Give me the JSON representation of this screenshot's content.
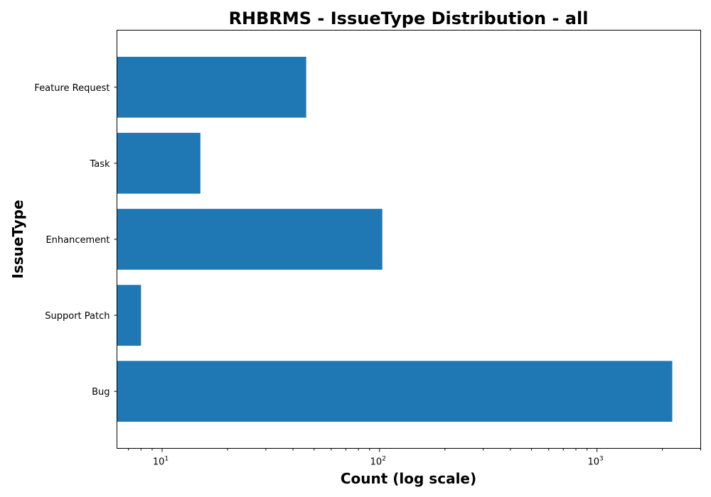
{
  "chart_data": {
    "type": "bar",
    "orientation": "horizontal",
    "title": "RHBRMS - IssueType Distribution - all",
    "xlabel": "Count (log scale)",
    "ylabel": "IssueType",
    "x_scale": "log",
    "xlim": [
      6.2,
      3000
    ],
    "x_ticks": [
      {
        "value": 10,
        "base": "10",
        "exp": "1"
      },
      {
        "value": 100,
        "base": "10",
        "exp": "2"
      },
      {
        "value": 1000,
        "base": "10",
        "exp": "3"
      }
    ],
    "categories": [
      "Feature Request",
      "Task",
      "Enhancement",
      "Support Patch",
      "Bug"
    ],
    "values": [
      46,
      15,
      103,
      8,
      2220
    ],
    "colors": {
      "bar": "#1f77b4",
      "axes": "#000000",
      "background": "#ffffff"
    },
    "grid": false,
    "legend": "none"
  }
}
